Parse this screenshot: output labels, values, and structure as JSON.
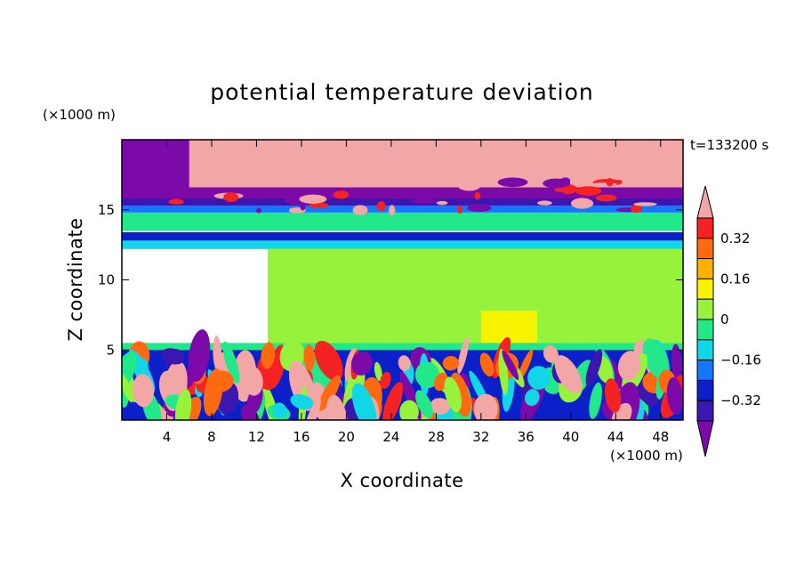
{
  "chart_data": {
    "type": "heatmap",
    "title": "potential temperature deviation",
    "xlabel": "X coordinate",
    "ylabel": "Z coordinate",
    "x_unit": "(×1000 m)",
    "y_unit": "(×1000 m)",
    "time_label": "t=133200 s",
    "xlim": [
      0,
      50
    ],
    "ylim": [
      0,
      20
    ],
    "x_ticks": [
      4,
      8,
      12,
      16,
      20,
      24,
      28,
      32,
      36,
      40,
      44,
      48
    ],
    "y_ticks": [
      5,
      10,
      15
    ],
    "grid": false,
    "colorbar": {
      "levels": [
        -0.4,
        -0.32,
        -0.24,
        -0.16,
        -0.08,
        0,
        0.08,
        0.16,
        0.24,
        0.32,
        0.4
      ],
      "tick_labels": [
        "0.32",
        "0.16",
        "0",
        "−0.16",
        "−0.32"
      ],
      "tick_values": [
        0.32,
        0.16,
        0,
        -0.16,
        -0.32
      ],
      "colors": [
        "#7b0aa8",
        "#3a17b0",
        "#0b20c8",
        "#1478ff",
        "#11d6e8",
        "#22e88a",
        "#96f23a",
        "#f8f400",
        "#ffb000",
        "#ff6a10",
        "#f42222",
        "#f2a6a6"
      ]
    },
    "fields": [
      {
        "x": [
          0,
          50
        ],
        "z": [
          15.6,
          20
        ],
        "value": -0.45
      },
      {
        "x": [
          6,
          50
        ],
        "z": [
          16.6,
          20
        ],
        "value": 0.45
      },
      {
        "x": [
          0,
          50
        ],
        "z": [
          15.3,
          15.8
        ],
        "value": -0.36
      },
      {
        "x": [
          0,
          50
        ],
        "z": [
          14.8,
          15.3
        ],
        "value": -0.2
      },
      {
        "x": [
          0,
          50
        ],
        "z": [
          13.5,
          14.8
        ],
        "value": -0.02
      },
      {
        "x": [
          0,
          50
        ],
        "z": [
          12.8,
          13.4
        ],
        "value": -0.28
      },
      {
        "x": [
          0,
          50
        ],
        "z": [
          12.2,
          12.8
        ],
        "value": -0.12
      },
      {
        "x": [
          13,
          50
        ],
        "z": [
          5.5,
          12.2
        ],
        "value": 0.04
      },
      {
        "x": [
          32,
          37
        ],
        "z": [
          5.5,
          7.8
        ],
        "value": 0.12
      },
      {
        "x": [
          0,
          50
        ],
        "z": [
          5.0,
          5.5
        ],
        "value": -0.04
      },
      {
        "x": [
          0,
          50
        ],
        "z": [
          0,
          5.0
        ],
        "value": -0.25
      }
    ]
  }
}
